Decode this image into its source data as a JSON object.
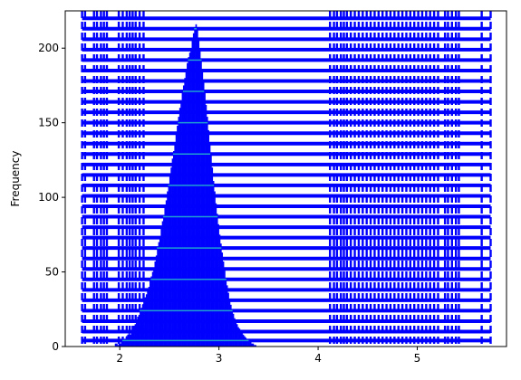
{
  "chart_data": {
    "type": "bar",
    "title": "",
    "xlabel": "",
    "ylabel": "Frequency",
    "xlim": [
      1.45,
      5.9
    ],
    "ylim": [
      0,
      225
    ],
    "xticks": [
      2,
      3,
      4,
      5
    ],
    "yticks": [
      0,
      50,
      100,
      150,
      200
    ],
    "grid": false,
    "legend": "none",
    "colors": {
      "bars": "#0000ff",
      "lines": "#0000ff",
      "dashes": "#0000ff",
      "highlight": "#1f9fd0"
    },
    "histogram": {
      "bin_start": 1.95,
      "bin_width": 0.0125,
      "counts": [
        2,
        2,
        1,
        3,
        2,
        3,
        4,
        3,
        5,
        7,
        8,
        9,
        8,
        10,
        12,
        14,
        15,
        18,
        20,
        21,
        24,
        26,
        28,
        30,
        33,
        35,
        38,
        40,
        44,
        47,
        50,
        53,
        57,
        61,
        66,
        70,
        74,
        79,
        84,
        88,
        93,
        98,
        104,
        109,
        114,
        120,
        126,
        131,
        137,
        143,
        148,
        154,
        160,
        165,
        170,
        175,
        180,
        185,
        190,
        194,
        197,
        200,
        206,
        210,
        214,
        216,
        212,
        205,
        199,
        193,
        186,
        178,
        170,
        162,
        154,
        145,
        136,
        128,
        120,
        111,
        104,
        96,
        89,
        82,
        75,
        69,
        63,
        57,
        51,
        46,
        41,
        36,
        32,
        28,
        25,
        22,
        19,
        17,
        15,
        13,
        12,
        10,
        9,
        8,
        7,
        6,
        5,
        4,
        3,
        3,
        2,
        2,
        1,
        1
      ]
    },
    "dashed_lines_x": [
      1.62,
      1.65,
      1.74,
      1.77,
      1.81,
      1.84,
      1.87,
      1.99,
      2.03,
      2.07,
      2.1,
      2.13,
      2.16,
      2.2,
      2.24,
      4.12,
      4.16,
      4.19,
      4.23,
      4.26,
      4.29,
      4.33,
      4.37,
      4.41,
      4.45,
      4.49,
      4.53,
      4.57,
      4.61,
      4.65,
      4.69,
      4.73,
      4.77,
      4.81,
      4.85,
      4.89,
      4.93,
      4.97,
      5.01,
      5.05,
      5.09,
      5.13,
      5.17,
      5.21,
      5.28,
      5.31,
      5.35,
      5.39,
      5.42,
      5.65,
      5.74
    ],
    "horizontal_lines_y": [
      4,
      10,
      17,
      24,
      31,
      38,
      45,
      52,
      59,
      66,
      73,
      80,
      87,
      94,
      101,
      108,
      115,
      122,
      129,
      136,
      143,
      150,
      157,
      164,
      171,
      178,
      185,
      192,
      199,
      206,
      213,
      220
    ],
    "horizontal_span": [
      1.62,
      5.74
    ]
  }
}
